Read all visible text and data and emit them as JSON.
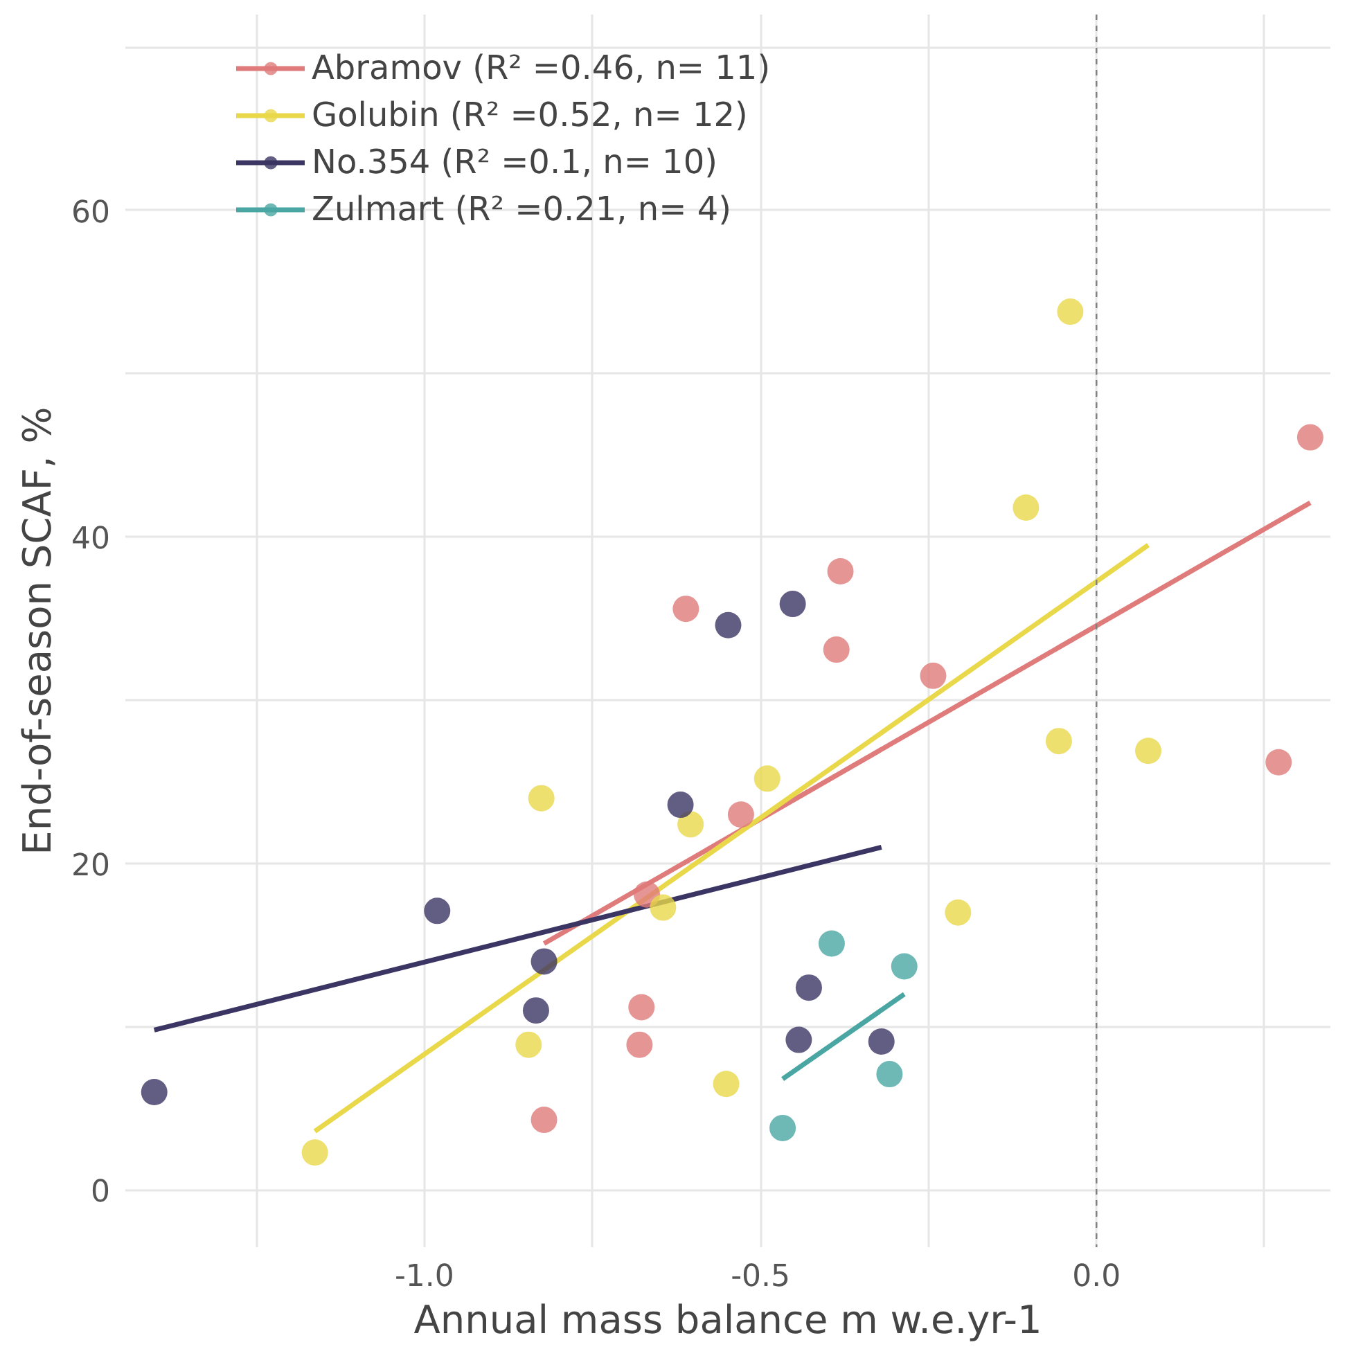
{
  "chart_data": {
    "type": "scatter",
    "xlabel": "Annual mass balance m w.e.yr-1",
    "ylabel": "End-of-season SCAF, %",
    "xlim": [
      -1.445,
      0.348
    ],
    "ylim": [
      -3.5,
      72
    ],
    "xticks": [
      {
        "value": -1.25,
        "label": null
      },
      {
        "value": -1.0,
        "label": "-1.0"
      },
      {
        "value": -0.75,
        "label": null
      },
      {
        "value": -0.5,
        "label": "-0.5"
      },
      {
        "value": -0.25,
        "label": null
      },
      {
        "value": 0.0,
        "label": "0.0"
      },
      {
        "value": 0.25,
        "label": null
      }
    ],
    "yticks": [
      0,
      {
        "value": 10,
        "label": null
      },
      20,
      {
        "value": 30,
        "label": null
      },
      40,
      {
        "value": 50,
        "label": null
      },
      60,
      {
        "value": 70,
        "label": null
      }
    ],
    "grid": true,
    "legend": "top left",
    "ref_lines": [
      {
        "axis": "x",
        "value": 0.0,
        "label": null,
        "color": "#808080",
        "line_style": "dashed"
      }
    ],
    "series": [
      {
        "name": "Abramov (R² =0.46, n= 11)",
        "marker": "circle",
        "color": "#e07b7b",
        "x": [
          0.318,
          0.271,
          -0.243,
          -0.381,
          -0.387,
          -0.611,
          -0.529,
          -0.669,
          -0.677,
          -0.68,
          -0.822
        ],
        "values": [
          46.1,
          26.2,
          31.5,
          37.9,
          33.1,
          35.6,
          23.0,
          18.1,
          11.2,
          8.9,
          4.3
        ]
      },
      {
        "name": "Golubin (R² =0.52, n= 12)",
        "marker": "circle",
        "color": "#e8d84a",
        "x": [
          -0.039,
          -0.105,
          -0.056,
          0.077,
          -0.206,
          -0.49,
          -0.604,
          -0.826,
          -0.645,
          -0.845,
          -0.551,
          -1.163
        ],
        "values": [
          53.8,
          41.8,
          27.5,
          26.9,
          17.0,
          25.2,
          22.4,
          24.0,
          17.3,
          8.9,
          6.5,
          2.3
        ]
      },
      {
        "name": "No.354 (R² =0.1, n= 10)",
        "marker": "circle",
        "color": "#3b3563",
        "x": [
          -1.402,
          -0.981,
          -0.822,
          -0.834,
          -0.619,
          -0.548,
          -0.452,
          -0.428,
          -0.443,
          -0.32
        ],
        "values": [
          6.0,
          17.1,
          14.0,
          11.0,
          23.6,
          34.6,
          35.9,
          12.4,
          9.2,
          9.1
        ]
      },
      {
        "name": "Zulmart (R² =0.21, n= 4)",
        "marker": "circle",
        "color": "#4aa6a2",
        "x": [
          -0.394,
          -0.286,
          -0.308,
          -0.467
        ],
        "values": [
          15.1,
          13.7,
          7.1,
          3.8
        ]
      },
      {
        "type": "line",
        "marker": "none",
        "color": "#e07b7b",
        "x": [
          -0.822,
          0.318
        ],
        "values": [
          15.1,
          42.1
        ]
      },
      {
        "type": "line",
        "marker": "none",
        "color": "#e8d84a",
        "x": [
          -1.163,
          0.077
        ],
        "values": [
          3.6,
          39.5
        ]
      },
      {
        "type": "line",
        "marker": "none",
        "color": "#3b3563",
        "x": [
          -1.402,
          -0.32
        ],
        "values": [
          9.8,
          21.0
        ]
      },
      {
        "type": "line",
        "marker": "none",
        "color": "#4aa6a2",
        "x": [
          -0.467,
          -0.286
        ],
        "values": [
          6.8,
          12.0
        ]
      }
    ]
  }
}
